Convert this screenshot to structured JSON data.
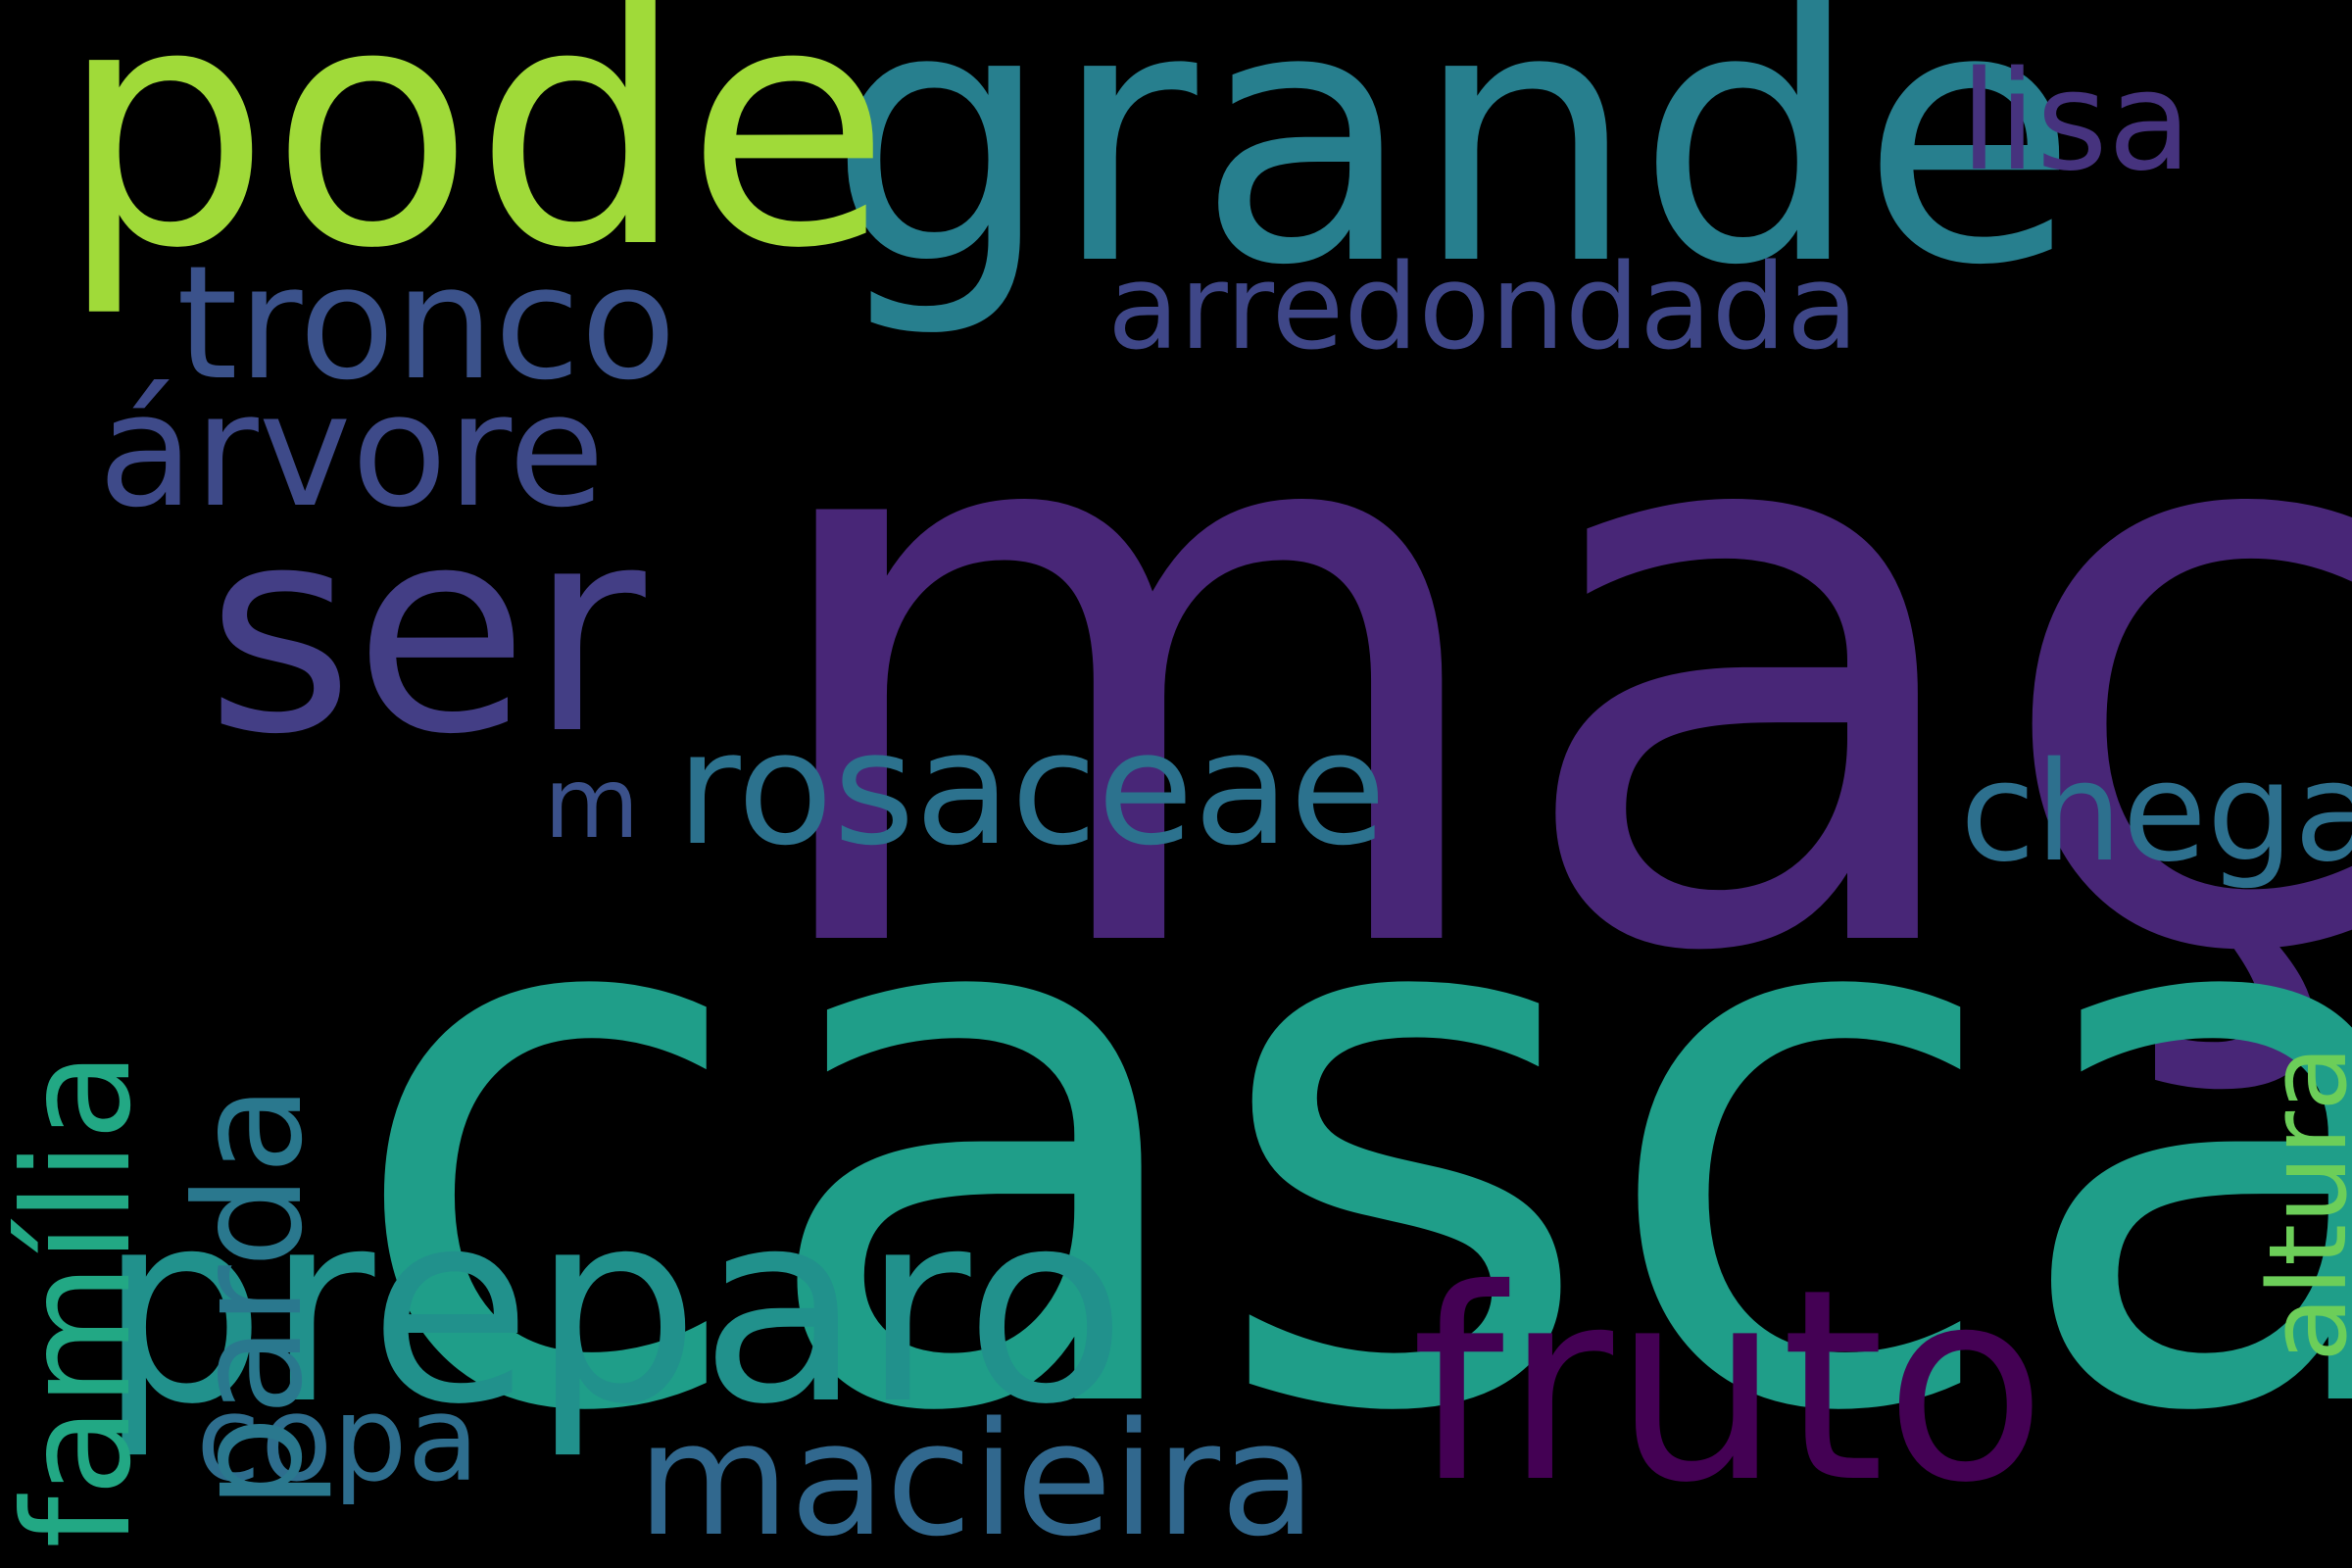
{
  "background": "#000000",
  "words": [
    {
      "id": "maca",
      "text": "maçã",
      "color": "#482677",
      "orientation": "horizontal"
    },
    {
      "id": "casca",
      "text": "casca",
      "color": "#1F9E89",
      "orientation": "horizontal"
    },
    {
      "id": "grande",
      "text": "grande",
      "color": "#277F8E",
      "orientation": "horizontal"
    },
    {
      "id": "pode",
      "text": "pode",
      "color": "#A0DA39",
      "orientation": "horizontal"
    },
    {
      "id": "ser",
      "text": "ser",
      "color": "#433E85",
      "orientation": "horizontal"
    },
    {
      "id": "preparo",
      "text": "preparo",
      "color": "#21918C",
      "orientation": "horizontal"
    },
    {
      "id": "fruto",
      "text": "fruto",
      "color": "#440154",
      "orientation": "horizontal"
    },
    {
      "id": "tronco",
      "text": "tronco",
      "color": "#3B528B",
      "orientation": "horizontal"
    },
    {
      "id": "arvore",
      "text": "árvore",
      "color": "#3E4A89",
      "orientation": "horizontal"
    },
    {
      "id": "rosaceae",
      "text": "rosaceae",
      "color": "#2C728E",
      "orientation": "horizontal"
    },
    {
      "id": "macieira",
      "text": "macieira",
      "color": "#31688E",
      "orientation": "horizontal"
    },
    {
      "id": "arredondada",
      "text": "arredondada",
      "color": "#3F4788",
      "orientation": "horizontal"
    },
    {
      "id": "lisa",
      "text": "lisa",
      "color": "#46337E",
      "orientation": "horizontal"
    },
    {
      "id": "chega",
      "text": "chega",
      "color": "#2D708E",
      "orientation": "horizontal"
    },
    {
      "id": "copa",
      "text": "copa",
      "color": "#2E6E8E",
      "orientation": "horizontal"
    },
    {
      "id": "m",
      "text": "m",
      "color": "#3B518B",
      "orientation": "horizontal"
    },
    {
      "id": "familia",
      "text": "família",
      "color": "#22A884",
      "orientation": "vertical"
    },
    {
      "id": "parda",
      "text": "parda",
      "color": "#2A788E",
      "orientation": "vertical"
    },
    {
      "id": "altura",
      "text": "altura",
      "color": "#6CCE59",
      "orientation": "vertical"
    }
  ]
}
